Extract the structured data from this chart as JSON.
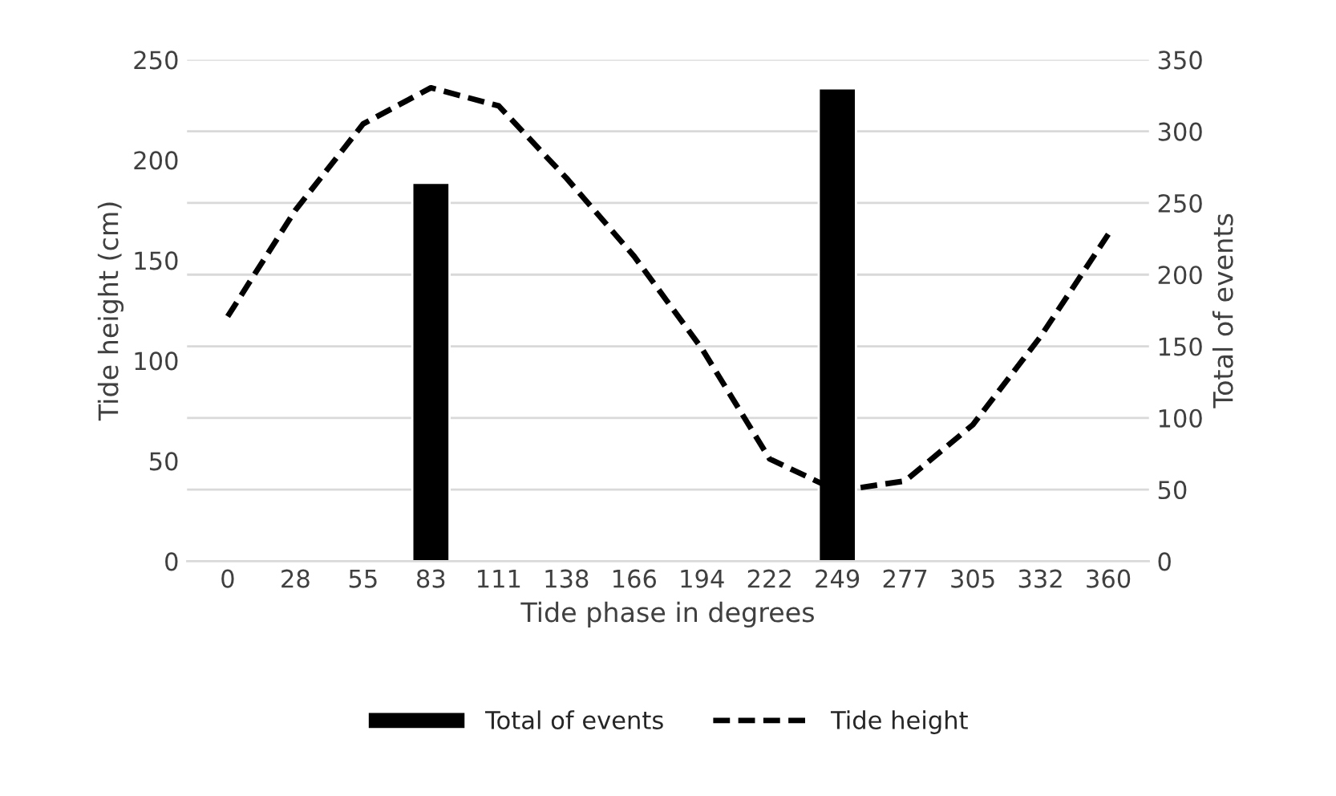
{
  "chart_data": {
    "type": "bar",
    "xlabel": "Tide phase in degrees",
    "ylabel": "Tide height (cm)",
    "y2label": "Total of events",
    "categories": [
      "0",
      "28",
      "55",
      "83",
      "111",
      "138",
      "166",
      "194",
      "222",
      "249",
      "277",
      "305",
      "332",
      "360"
    ],
    "series": [
      {
        "name": "Total of events",
        "axis": "y2",
        "color": "#000000",
        "values": [
          null,
          null,
          null,
          264,
          null,
          null,
          null,
          null,
          null,
          330,
          null,
          null,
          null,
          null
        ]
      },
      {
        "name": "Tide height",
        "type": "line",
        "axis": "y",
        "color": "#000000",
        "line_style": "dashed",
        "values": [
          122,
          175,
          218,
          236,
          227,
          191,
          152,
          106,
          51,
          35,
          40,
          68,
          112,
          163
        ]
      }
    ],
    "ylim": [
      0,
      250
    ],
    "yticks": [
      0,
      50,
      100,
      150,
      200,
      250
    ],
    "y2lim": [
      0,
      350
    ],
    "y2ticks": [
      0,
      50,
      100,
      150,
      200,
      250,
      300,
      350
    ],
    "grid": "y",
    "legend": "bottom"
  }
}
